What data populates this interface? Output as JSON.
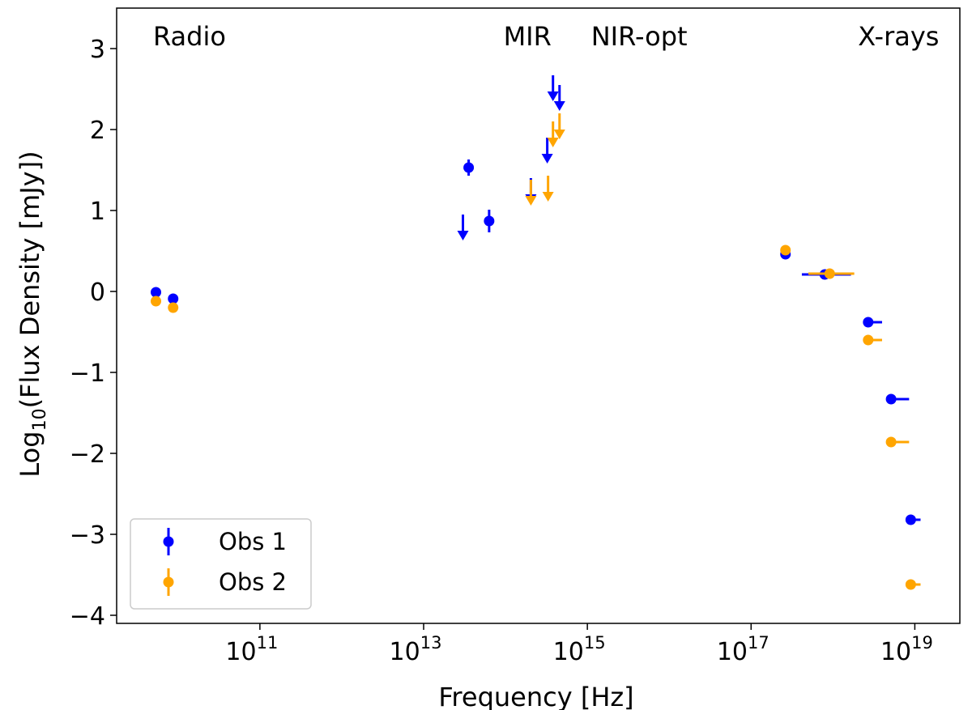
{
  "chart_data": {
    "type": "scatter",
    "title": "",
    "xlabel": "Frequency [Hz]",
    "ylabel_prefix": "Log",
    "ylabel_sub": "10",
    "ylabel_suffix": "(Flux Density [mJy])",
    "xscale": "log",
    "xlim_log10": [
      9.25,
      19.55
    ],
    "ylim": [
      -4.1,
      3.5
    ],
    "x_ticks": [
      {
        "base": "10",
        "exp": "11",
        "log10": 11
      },
      {
        "base": "10",
        "exp": "13",
        "log10": 13
      },
      {
        "base": "10",
        "exp": "15",
        "log10": 15
      },
      {
        "base": "10",
        "exp": "17",
        "log10": 17
      },
      {
        "base": "10",
        "exp": "19",
        "log10": 19
      }
    ],
    "y_ticks": [
      {
        "value": 3,
        "label": "3"
      },
      {
        "value": 2,
        "label": "2"
      },
      {
        "value": 1,
        "label": "1"
      },
      {
        "value": 0,
        "label": "0"
      },
      {
        "value": -1,
        "label": "−1"
      },
      {
        "value": -2,
        "label": "−2"
      },
      {
        "value": -3,
        "label": "−3"
      },
      {
        "value": -4,
        "label": "−4"
      }
    ],
    "band_labels": [
      {
        "text": "Radio",
        "log10_x": 9.25,
        "y": 3.15
      },
      {
        "text": "MIR",
        "log10_x": 13.53,
        "y": 3.15
      },
      {
        "text": "NIR-opt",
        "log10_x": 14.6,
        "y": 3.15
      },
      {
        "text": "X-rays",
        "log10_x": 17.86,
        "y": 3.15
      }
    ],
    "legend": {
      "placement": "lower-left"
    },
    "series": [
      {
        "name": "Obs 1",
        "color": "#0000ff",
        "points": [
          {
            "log10_x": 9.73,
            "y": -0.01
          },
          {
            "log10_x": 9.94,
            "y": -0.09
          },
          {
            "log10_x": 13.55,
            "y": 1.53,
            "yerr": 0.1
          },
          {
            "log10_x": 13.8,
            "y": 0.87,
            "yerr": 0.14
          },
          {
            "log10_x": 17.42,
            "y": 0.46
          },
          {
            "log10_x": 17.9,
            "y": 0.21,
            "xerr_lo": 0.28,
            "xerr_hi": 0.32
          },
          {
            "log10_x": 18.43,
            "y": -0.38,
            "xerr_lo": 0.05,
            "xerr_hi": 0.17
          },
          {
            "log10_x": 18.71,
            "y": -1.33,
            "xerr_lo": 0.0,
            "xerr_hi": 0.22
          },
          {
            "log10_x": 18.95,
            "y": -2.82,
            "xerr_lo": 0.0,
            "xerr_hi": 0.12
          }
        ],
        "upper_limits": [
          {
            "log10_x": 13.48,
            "y": 0.65
          },
          {
            "log10_x": 14.31,
            "y": 1.1
          },
          {
            "log10_x": 14.51,
            "y": 1.6
          },
          {
            "log10_x": 14.58,
            "y": 2.37
          },
          {
            "log10_x": 14.66,
            "y": 2.25
          }
        ]
      },
      {
        "name": "Obs 2",
        "color": "#ffa500",
        "points": [
          {
            "log10_x": 9.73,
            "y": -0.12
          },
          {
            "log10_x": 9.94,
            "y": -0.2
          },
          {
            "log10_x": 17.42,
            "y": 0.51
          },
          {
            "log10_x": 17.96,
            "y": 0.22,
            "xerr_lo": 0.26,
            "xerr_hi": 0.3
          },
          {
            "log10_x": 18.43,
            "y": -0.6,
            "xerr_lo": 0.05,
            "xerr_hi": 0.17
          },
          {
            "log10_x": 18.71,
            "y": -1.86,
            "xerr_lo": 0.0,
            "xerr_hi": 0.22
          },
          {
            "log10_x": 18.95,
            "y": -3.62,
            "xerr_lo": 0.0,
            "xerr_hi": 0.12
          }
        ],
        "upper_limits": [
          {
            "log10_x": 14.31,
            "y": 1.08
          },
          {
            "log10_x": 14.52,
            "y": 1.13
          },
          {
            "log10_x": 14.58,
            "y": 1.8
          },
          {
            "log10_x": 14.66,
            "y": 1.9
          }
        ]
      }
    ]
  }
}
